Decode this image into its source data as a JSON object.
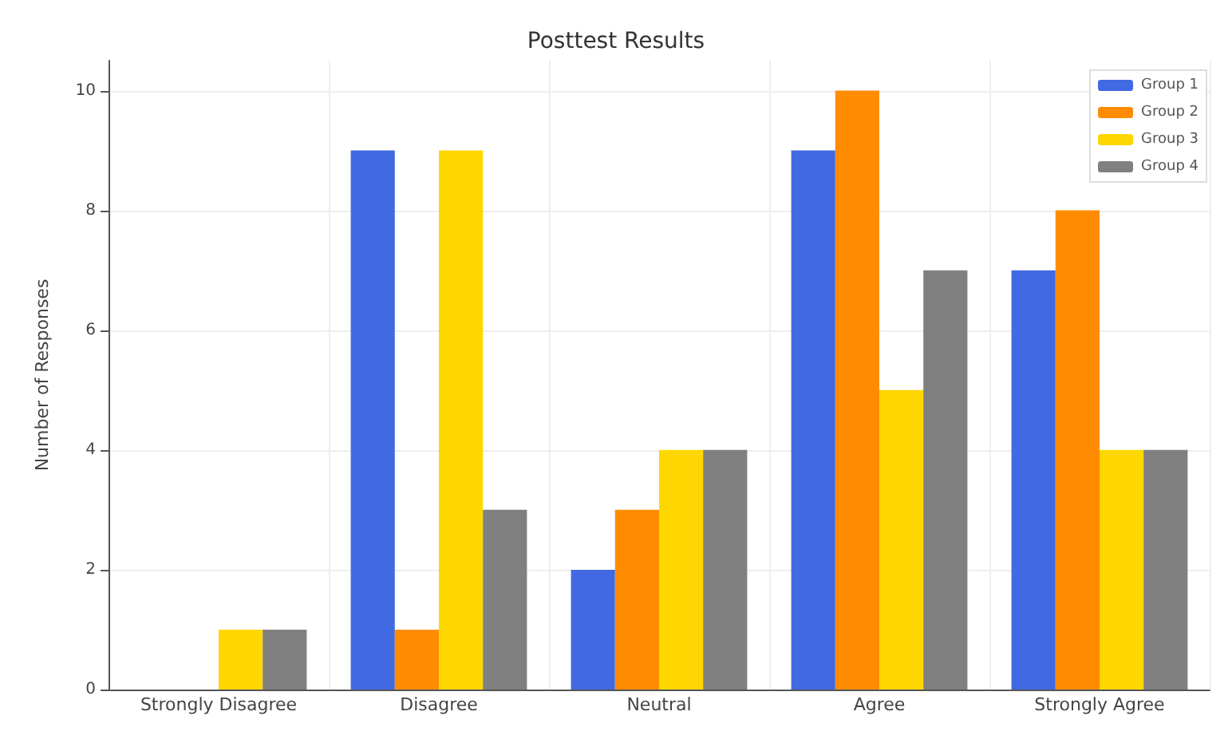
{
  "chart_data": {
    "type": "bar",
    "title": "Posttest Results",
    "ylabel": "Number of Responses",
    "categories": [
      "Strongly Disagree",
      "Disagree",
      "Neutral",
      "Agree",
      "Strongly Agree"
    ],
    "series": [
      {
        "name": "Group 1",
        "color": "#4169e1",
        "values": [
          0,
          9,
          2,
          9,
          7
        ]
      },
      {
        "name": "Group 2",
        "color": "#ff8c00",
        "values": [
          0,
          1,
          3,
          10,
          8
        ]
      },
      {
        "name": "Group 3",
        "color": "#ffd700",
        "values": [
          1,
          9,
          4,
          5,
          4
        ]
      },
      {
        "name": "Group 4",
        "color": "#808080",
        "values": [
          1,
          3,
          4,
          7,
          4
        ]
      }
    ],
    "ylim": [
      0,
      10.5
    ],
    "yticks": [
      0,
      2,
      4,
      6,
      8,
      10
    ],
    "grid": true,
    "legend": "top right"
  }
}
